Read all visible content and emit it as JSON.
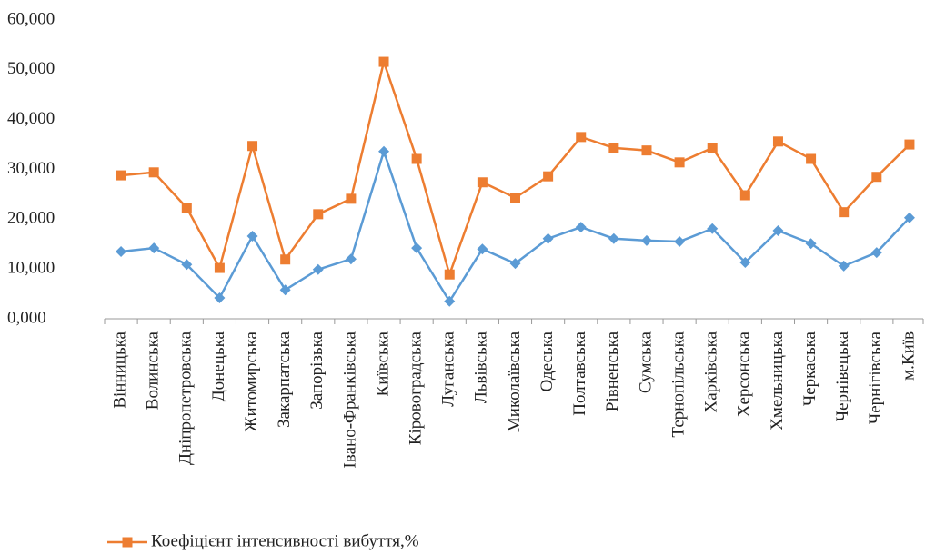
{
  "chart_data": {
    "type": "line",
    "categories": [
      "Вінницька",
      "Волинська",
      "Дніпропетровська",
      "Донецька",
      "Житомирська",
      "Закарпатська",
      "Запорізька",
      "Івано-Франківська",
      "Київська",
      "Кіровоградська",
      "Луганська",
      "Львівська",
      "Миколаївська",
      "Одеська",
      "Полтавська",
      "Рівненська",
      "Сумська",
      "Тернопільська",
      "Харківська",
      "Херсонська",
      "Хмельницька",
      "Черкаська",
      "Чернівецька",
      "Чернігівська",
      "м.Київ"
    ],
    "series": [
      {
        "color": "#5b9bd5",
        "marker": "diamond",
        "values": [
          13.5,
          14.2,
          10.9,
          4.2,
          16.6,
          5.8,
          9.9,
          12.0,
          33.6,
          14.2,
          3.5,
          14.0,
          11.1,
          16.1,
          18.4,
          16.1,
          15.7,
          15.5,
          18.1,
          11.3,
          17.7,
          15.1,
          10.6,
          13.3,
          20.3
        ]
      },
      {
        "name": "Коефіцієнт інтенсивності вибуття,%",
        "color": "#ed7d31",
        "marker": "square",
        "values": [
          28.8,
          29.4,
          22.3,
          10.2,
          34.7,
          11.9,
          21.0,
          24.1,
          51.6,
          32.1,
          8.9,
          27.4,
          24.3,
          28.6,
          36.5,
          34.3,
          33.8,
          31.4,
          34.3,
          24.8,
          35.6,
          32.1,
          21.4,
          28.5,
          35.0
        ]
      }
    ],
    "ylim": [
      0,
      60
    ],
    "yticks": [
      {
        "value": 0,
        "label": "0,000"
      },
      {
        "value": 10,
        "label": "10,000"
      },
      {
        "value": 20,
        "label": "20,000"
      },
      {
        "value": 30,
        "label": "30,000"
      },
      {
        "value": 40,
        "label": "40,000"
      },
      {
        "value": 50,
        "label": "50,000"
      },
      {
        "value": 60,
        "label": "60,000"
      }
    ],
    "grid": false,
    "legend": "bottom-left"
  }
}
